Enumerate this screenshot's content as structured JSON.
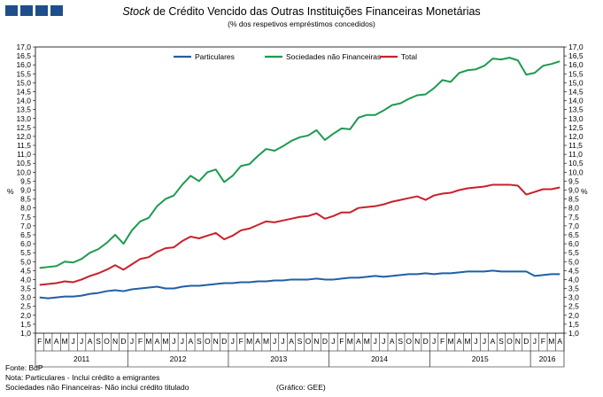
{
  "header": {
    "title_italic": "Stock",
    "title_rest": " de Crédito Vencido das Outras Instituições Financeiras Monetárias",
    "subtitle": "(% dos respetivos empréstimos concedidos)"
  },
  "footer": {
    "source": "Fonte: BdP",
    "note1": "Nota: Particulares - Inclui crédito a emigrantes",
    "note2": "Sociedades não Financeiras- Não inclui crédito titulado",
    "graphic": "(Gráfico: GEE)"
  },
  "chart_data": {
    "type": "line",
    "title": "Stock de Crédito Vencido das Outras Instituições Financeiras Monetárias",
    "subtitle": "(% dos respetivos empréstimos concedidos)",
    "ylabel_left": "%",
    "ylabel_right": "%",
    "ylim": [
      1.0,
      17.0
    ],
    "ytick_step": 0.5,
    "grid": false,
    "legend_position": "top",
    "month_letters": [
      "F",
      "M",
      "A",
      "M",
      "J",
      "J",
      "A",
      "S",
      "O",
      "N",
      "D",
      "J",
      "F",
      "M",
      "A",
      "M",
      "J",
      "J",
      "A",
      "S",
      "O",
      "N",
      "D",
      "J",
      "F",
      "M",
      "A",
      "M",
      "J",
      "J",
      "A",
      "S",
      "O",
      "N",
      "D",
      "J",
      "F",
      "M",
      "A",
      "M",
      "J",
      "J",
      "A",
      "S",
      "O",
      "N",
      "D",
      "J",
      "F",
      "M",
      "A",
      "M",
      "J",
      "J",
      "A",
      "S",
      "O",
      "N",
      "D",
      "J",
      "F",
      "M",
      "A"
    ],
    "years": [
      {
        "label": "2011",
        "months": 11
      },
      {
        "label": "2012",
        "months": 12
      },
      {
        "label": "2013",
        "months": 12
      },
      {
        "label": "2014",
        "months": 12
      },
      {
        "label": "2015",
        "months": 12
      },
      {
        "label": "2016",
        "months": 4
      }
    ],
    "x": [
      "2011-02",
      "2011-03",
      "2011-04",
      "2011-05",
      "2011-06",
      "2011-07",
      "2011-08",
      "2011-09",
      "2011-10",
      "2011-11",
      "2011-12",
      "2012-01",
      "2012-02",
      "2012-03",
      "2012-04",
      "2012-05",
      "2012-06",
      "2012-07",
      "2012-08",
      "2012-09",
      "2012-10",
      "2012-11",
      "2012-12",
      "2013-01",
      "2013-02",
      "2013-03",
      "2013-04",
      "2013-05",
      "2013-06",
      "2013-07",
      "2013-08",
      "2013-09",
      "2013-10",
      "2013-11",
      "2013-12",
      "2014-01",
      "2014-02",
      "2014-03",
      "2014-04",
      "2014-05",
      "2014-06",
      "2014-07",
      "2014-08",
      "2014-09",
      "2014-10",
      "2014-11",
      "2014-12",
      "2015-01",
      "2015-02",
      "2015-03",
      "2015-04",
      "2015-05",
      "2015-06",
      "2015-07",
      "2015-08",
      "2015-09",
      "2015-10",
      "2015-11",
      "2015-12",
      "2016-01",
      "2016-02",
      "2016-03",
      "2016-04"
    ],
    "series": [
      {
        "name": "Particulares",
        "color": "#1f5fa6",
        "values": [
          3.0,
          2.95,
          3.0,
          3.05,
          3.05,
          3.1,
          3.2,
          3.25,
          3.35,
          3.4,
          3.35,
          3.45,
          3.5,
          3.55,
          3.6,
          3.5,
          3.5,
          3.6,
          3.65,
          3.65,
          3.7,
          3.75,
          3.8,
          3.8,
          3.85,
          3.85,
          3.9,
          3.9,
          3.95,
          3.95,
          4.0,
          4.0,
          4.0,
          4.05,
          4.0,
          4.0,
          4.05,
          4.1,
          4.1,
          4.15,
          4.2,
          4.15,
          4.2,
          4.25,
          4.3,
          4.3,
          4.35,
          4.3,
          4.35,
          4.35,
          4.4,
          4.45,
          4.45,
          4.45,
          4.5,
          4.45,
          4.45,
          4.45,
          4.45,
          4.2,
          4.25,
          4.3,
          4.3
        ]
      },
      {
        "name": "Sociedades não Financeiras",
        "color": "#1e9a50",
        "values": [
          4.65,
          4.7,
          4.75,
          5.0,
          4.95,
          5.15,
          5.5,
          5.7,
          6.05,
          6.5,
          6.0,
          6.75,
          7.25,
          7.45,
          8.1,
          8.5,
          8.7,
          9.3,
          9.8,
          9.5,
          10.0,
          10.15,
          9.45,
          9.8,
          10.35,
          10.45,
          10.9,
          11.3,
          11.2,
          11.45,
          11.75,
          11.95,
          12.05,
          12.35,
          11.8,
          12.15,
          12.45,
          12.4,
          13.05,
          13.2,
          13.2,
          13.45,
          13.75,
          13.85,
          14.1,
          14.3,
          14.35,
          14.7,
          15.15,
          15.05,
          15.55,
          15.7,
          15.75,
          15.95,
          16.35,
          16.3,
          16.4,
          16.25,
          15.45,
          15.55,
          15.95,
          16.05,
          16.2
        ]
      },
      {
        "name": "Total",
        "color": "#c8202c",
        "values": [
          3.7,
          3.75,
          3.8,
          3.9,
          3.85,
          4.0,
          4.2,
          4.35,
          4.55,
          4.8,
          4.55,
          4.85,
          5.15,
          5.25,
          5.55,
          5.75,
          5.8,
          6.15,
          6.4,
          6.3,
          6.45,
          6.6,
          6.25,
          6.45,
          6.75,
          6.85,
          7.05,
          7.25,
          7.2,
          7.3,
          7.4,
          7.5,
          7.55,
          7.7,
          7.4,
          7.55,
          7.75,
          7.75,
          8.0,
          8.05,
          8.1,
          8.2,
          8.35,
          8.45,
          8.55,
          8.65,
          8.45,
          8.7,
          8.8,
          8.85,
          9.0,
          9.1,
          9.15,
          9.2,
          9.3,
          9.3,
          9.3,
          9.25,
          8.75,
          8.9,
          9.05,
          9.05,
          9.15
        ]
      }
    ]
  }
}
